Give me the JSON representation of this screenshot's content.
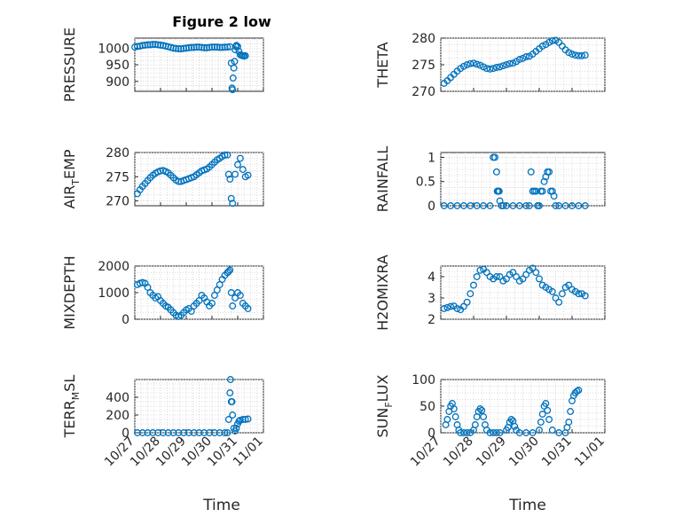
{
  "figure": {
    "title": "Figure 2 low",
    "xlabel": "Time"
  },
  "chart_data": [
    {
      "type": "scatter",
      "ylabel": "PRESSURE",
      "xlim": [
        0,
        5
      ],
      "ylim": [
        870,
        1030
      ],
      "yticks": [
        900,
        950,
        1000
      ],
      "grid": true,
      "x": [
        0.0,
        0.1,
        0.2,
        0.3,
        0.4,
        0.5,
        0.6,
        0.7,
        0.8,
        0.9,
        1.0,
        1.1,
        1.2,
        1.3,
        1.4,
        1.5,
        1.6,
        1.7,
        1.8,
        1.9,
        2.0,
        2.1,
        2.2,
        2.3,
        2.4,
        2.5,
        2.6,
        2.7,
        2.8,
        2.9,
        3.0,
        3.1,
        3.2,
        3.3,
        3.4,
        3.5,
        3.6,
        3.7,
        3.75,
        3.78,
        3.8,
        3.82,
        3.85,
        3.88,
        3.9,
        3.92,
        3.95,
        4.0,
        4.05,
        4.1,
        4.15,
        4.2,
        4.25,
        4.3
      ],
      "y": [
        1003,
        1005,
        1006,
        1008,
        1009,
        1010,
        1010,
        1011,
        1011,
        1010,
        1009,
        1008,
        1006,
        1004,
        1002,
        1000,
        999,
        998,
        998,
        999,
        1000,
        1001,
        1002,
        1002,
        1003,
        1003,
        1002,
        1001,
        1001,
        1002,
        1003,
        1003,
        1003,
        1002,
        1002,
        1003,
        1003,
        1004,
        955,
        880,
        875,
        910,
        940,
        960,
        995,
        1005,
        1008,
        1005,
        990,
        980,
        978,
        977,
        976,
        977
      ]
    },
    {
      "type": "scatter",
      "ylabel": "THETA",
      "xlim": [
        0,
        5
      ],
      "ylim": [
        270,
        280
      ],
      "yticks": [
        270,
        275,
        280
      ],
      "grid": true,
      "x": [
        0.1,
        0.2,
        0.3,
        0.4,
        0.5,
        0.6,
        0.7,
        0.8,
        0.9,
        1.0,
        1.1,
        1.2,
        1.3,
        1.4,
        1.5,
        1.6,
        1.7,
        1.8,
        1.9,
        2.0,
        2.1,
        2.2,
        2.3,
        2.4,
        2.5,
        2.6,
        2.7,
        2.8,
        2.9,
        3.0,
        3.1,
        3.2,
        3.3,
        3.4,
        3.5,
        3.6,
        3.7,
        3.8,
        3.9,
        4.0,
        4.1,
        4.2,
        4.3,
        4.4
      ],
      "y": [
        271.5,
        272.0,
        272.6,
        273.2,
        273.8,
        274.3,
        274.7,
        275.0,
        275.2,
        275.3,
        275.1,
        274.9,
        274.6,
        274.3,
        274.2,
        274.3,
        274.5,
        274.6,
        274.8,
        275.0,
        275.2,
        275.3,
        275.6,
        276.0,
        276.2,
        276.5,
        276.6,
        277.0,
        277.5,
        278.0,
        278.5,
        278.8,
        279.2,
        279.5,
        279.6,
        279.2,
        278.5,
        277.8,
        277.3,
        277.0,
        276.8,
        276.7,
        276.7,
        276.8
      ]
    },
    {
      "type": "scatter",
      "ylabel": "AIR_TEMP",
      "xlim": [
        0,
        5
      ],
      "ylim": [
        269,
        280
      ],
      "yticks": [
        270,
        275,
        280
      ],
      "grid": true,
      "x": [
        0.1,
        0.2,
        0.3,
        0.4,
        0.5,
        0.6,
        0.7,
        0.8,
        0.9,
        1.0,
        1.1,
        1.2,
        1.3,
        1.4,
        1.5,
        1.6,
        1.7,
        1.8,
        1.9,
        2.0,
        2.1,
        2.2,
        2.3,
        2.4,
        2.5,
        2.6,
        2.7,
        2.8,
        2.9,
        3.0,
        3.1,
        3.2,
        3.3,
        3.4,
        3.5,
        3.6,
        3.65,
        3.7,
        3.75,
        3.8,
        3.9,
        4.0,
        4.1,
        4.2,
        4.3,
        4.4
      ],
      "y": [
        271.5,
        272.3,
        273.0,
        273.6,
        274.2,
        274.8,
        275.3,
        275.7,
        276.0,
        276.2,
        276.3,
        276.1,
        275.8,
        275.3,
        274.8,
        274.3,
        274.0,
        274.0,
        274.2,
        274.4,
        274.6,
        274.8,
        275.0,
        275.4,
        275.8,
        276.2,
        276.4,
        276.6,
        277.0,
        277.5,
        278.0,
        278.5,
        278.8,
        279.2,
        279.5,
        279.5,
        275.5,
        274.5,
        270.5,
        269.5,
        275.5,
        277.5,
        278.8,
        276.5,
        275.0,
        275.3
      ]
    },
    {
      "type": "scatter",
      "ylabel": "RAINFALL",
      "xlim": [
        0,
        5
      ],
      "ylim": [
        0,
        1.1
      ],
      "yticks": [
        0,
        0.5,
        1
      ],
      "grid": true,
      "x": [
        0.1,
        0.3,
        0.5,
        0.7,
        0.9,
        1.1,
        1.3,
        1.5,
        1.6,
        1.65,
        1.7,
        1.72,
        1.75,
        1.78,
        1.8,
        1.85,
        1.9,
        2.0,
        2.2,
        2.4,
        2.6,
        2.7,
        2.75,
        2.8,
        2.85,
        2.9,
        2.95,
        3.0,
        3.05,
        3.1,
        3.15,
        3.2,
        3.25,
        3.3,
        3.35,
        3.4,
        3.45,
        3.5,
        3.6,
        3.8,
        4.0,
        4.2,
        4.4
      ],
      "y": [
        0,
        0,
        0,
        0,
        0,
        0,
        0,
        0,
        1.0,
        1.0,
        0.7,
        0.3,
        0.3,
        0.3,
        0.1,
        0,
        0,
        0,
        0,
        0,
        0,
        0,
        0.7,
        0.3,
        0.3,
        0.3,
        0,
        0,
        0.3,
        0.3,
        0.5,
        0.6,
        0.7,
        0.7,
        0.3,
        0.3,
        0.2,
        0,
        0,
        0,
        0,
        0,
        0
      ]
    },
    {
      "type": "scatter",
      "ylabel": "MIXDEPTH",
      "xlim": [
        0,
        5
      ],
      "ylim": [
        0,
        2000
      ],
      "yticks": [
        0,
        1000,
        2000
      ],
      "grid": true,
      "x": [
        0.1,
        0.2,
        0.3,
        0.4,
        0.5,
        0.6,
        0.7,
        0.8,
        0.9,
        1.0,
        1.1,
        1.2,
        1.3,
        1.4,
        1.5,
        1.6,
        1.7,
        1.8,
        1.9,
        2.0,
        2.1,
        2.2,
        2.3,
        2.4,
        2.5,
        2.6,
        2.7,
        2.8,
        2.9,
        3.0,
        3.1,
        3.2,
        3.3,
        3.4,
        3.5,
        3.6,
        3.65,
        3.7,
        3.75,
        3.8,
        3.9,
        4.0,
        4.1,
        4.2,
        4.3,
        4.4
      ],
      "y": [
        1300,
        1350,
        1380,
        1350,
        1200,
        1000,
        900,
        800,
        850,
        700,
        600,
        500,
        450,
        350,
        250,
        150,
        100,
        150,
        250,
        350,
        400,
        300,
        500,
        600,
        700,
        900,
        800,
        650,
        500,
        600,
        900,
        1100,
        1300,
        1500,
        1650,
        1750,
        1800,
        1850,
        1000,
        500,
        800,
        1000,
        900,
        600,
        500,
        400
      ]
    },
    {
      "type": "scatter",
      "ylabel": "H2OMIXRA",
      "xlim": [
        0,
        5
      ],
      "ylim": [
        2,
        4.5
      ],
      "yticks": [
        2,
        3,
        4
      ],
      "grid": true,
      "x": [
        0.1,
        0.2,
        0.3,
        0.4,
        0.5,
        0.6,
        0.7,
        0.8,
        0.9,
        1.0,
        1.1,
        1.2,
        1.3,
        1.4,
        1.5,
        1.6,
        1.7,
        1.8,
        1.9,
        2.0,
        2.1,
        2.2,
        2.3,
        2.4,
        2.5,
        2.6,
        2.7,
        2.8,
        2.9,
        3.0,
        3.1,
        3.2,
        3.3,
        3.4,
        3.5,
        3.6,
        3.7,
        3.8,
        3.9,
        4.0,
        4.1,
        4.2,
        4.3,
        4.4
      ],
      "y": [
        2.5,
        2.55,
        2.6,
        2.62,
        2.5,
        2.45,
        2.6,
        2.8,
        3.2,
        3.6,
        4.0,
        4.3,
        4.35,
        4.2,
        4.0,
        3.9,
        4.0,
        4.0,
        3.8,
        3.9,
        4.1,
        4.2,
        4.0,
        3.8,
        3.9,
        4.1,
        4.3,
        4.4,
        4.2,
        3.9,
        3.6,
        3.5,
        3.4,
        3.3,
        3.0,
        2.8,
        3.2,
        3.5,
        3.6,
        3.4,
        3.3,
        3.2,
        3.2,
        3.1
      ]
    },
    {
      "type": "scatter",
      "ylabel": "TERR_MSL",
      "xlim": [
        0,
        5
      ],
      "ylim": [
        0,
        600
      ],
      "yticks": [
        0,
        200,
        400
      ],
      "grid": true,
      "x": [
        0.1,
        0.3,
        0.5,
        0.7,
        0.9,
        1.1,
        1.3,
        1.5,
        1.7,
        1.9,
        2.1,
        2.3,
        2.5,
        2.7,
        2.9,
        3.1,
        3.3,
        3.5,
        3.6,
        3.65,
        3.7,
        3.72,
        3.75,
        3.78,
        3.8,
        3.85,
        3.9,
        3.95,
        4.0,
        4.05,
        4.1,
        4.2,
        4.3,
        4.4
      ],
      "y": [
        0,
        0,
        0,
        0,
        0,
        0,
        0,
        0,
        0,
        0,
        0,
        0,
        0,
        0,
        0,
        0,
        0,
        0,
        0,
        150,
        450,
        600,
        350,
        350,
        200,
        50,
        20,
        50,
        100,
        130,
        140,
        150,
        150,
        155
      ]
    },
    {
      "type": "scatter",
      "ylabel": "SUN_FLUX",
      "xlim": [
        0,
        5
      ],
      "ylim": [
        0,
        100
      ],
      "yticks": [
        0,
        50,
        100
      ],
      "grid": true,
      "x": [
        0.15,
        0.2,
        0.25,
        0.3,
        0.35,
        0.4,
        0.45,
        0.5,
        0.55,
        0.6,
        0.7,
        0.8,
        0.9,
        1.0,
        1.05,
        1.1,
        1.15,
        1.2,
        1.25,
        1.3,
        1.35,
        1.4,
        1.5,
        1.6,
        1.7,
        1.8,
        2.0,
        2.05,
        2.1,
        2.15,
        2.2,
        2.25,
        2.3,
        2.4,
        2.6,
        2.8,
        3.0,
        3.05,
        3.1,
        3.15,
        3.2,
        3.25,
        3.3,
        3.4,
        3.6,
        3.8,
        3.85,
        3.9,
        3.95,
        4.0,
        4.05,
        4.1,
        4.15,
        4.2
      ],
      "y": [
        15,
        25,
        40,
        50,
        55,
        45,
        30,
        15,
        5,
        0,
        0,
        0,
        0,
        5,
        15,
        30,
        40,
        45,
        42,
        30,
        15,
        5,
        0,
        0,
        0,
        0,
        5,
        10,
        20,
        25,
        22,
        12,
        5,
        0,
        0,
        0,
        5,
        20,
        35,
        50,
        55,
        42,
        25,
        5,
        0,
        0,
        10,
        20,
        40,
        60,
        70,
        75,
        78,
        80
      ]
    }
  ],
  "xaxis": {
    "ticks": [
      0,
      1,
      2,
      3,
      4,
      5
    ],
    "tick_labels": [
      "10/27",
      "10/28",
      "10/29",
      "10/30",
      "10/31",
      "11/01"
    ]
  }
}
